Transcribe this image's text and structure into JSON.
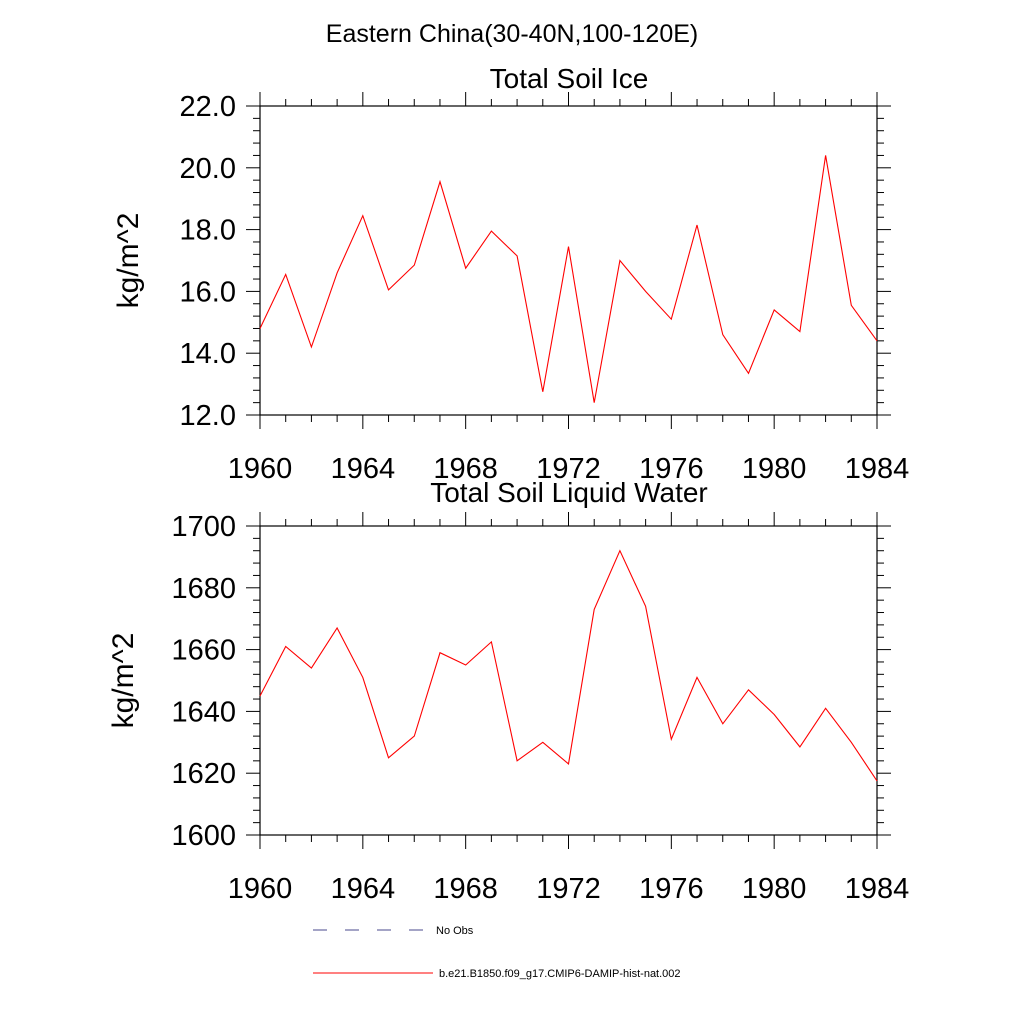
{
  "figure_title": "Eastern China(30-40N,100-120E)",
  "legend": [
    {
      "label": "No Obs",
      "color": "#4a4a8c",
      "style": "dashed"
    },
    {
      "label": "b.e21.B1850.f09_g17.CMIP6-DAMIP-hist-nat.002",
      "color": "#ff0000",
      "style": "solid"
    }
  ],
  "chart_data": [
    {
      "type": "line",
      "title": "Total Soil Ice",
      "xlabel": "",
      "ylabel": "kg/m^2",
      "xlim": [
        1960,
        1984
      ],
      "ylim": [
        12.0,
        22.0
      ],
      "xticks": [
        "1960",
        "1964",
        "1968",
        "1972",
        "1976",
        "1980",
        "1984"
      ],
      "yticks": [
        "12.0",
        "14.0",
        "16.0",
        "18.0",
        "20.0",
        "22.0"
      ],
      "grid": false,
      "x": [
        1960,
        1961,
        1962,
        1963,
        1964,
        1965,
        1966,
        1967,
        1968,
        1969,
        1970,
        1971,
        1972,
        1973,
        1974,
        1975,
        1976,
        1977,
        1978,
        1979,
        1980,
        1981,
        1982,
        1983,
        1984
      ],
      "series": [
        {
          "name": "b.e21.B1850.f09_g17.CMIP6-DAMIP-hist-nat.002",
          "color": "#ff0000",
          "values": [
            14.8,
            16.55,
            14.2,
            16.6,
            18.45,
            16.05,
            16.85,
            19.55,
            16.75,
            17.95,
            17.15,
            12.75,
            17.45,
            12.4,
            17.0,
            16.0,
            15.1,
            18.15,
            14.6,
            13.35,
            15.4,
            14.7,
            20.4,
            15.55,
            14.4
          ]
        }
      ]
    },
    {
      "type": "line",
      "title": "Total Soil Liquid Water",
      "xlabel": "",
      "ylabel": "kg/m^2",
      "xlim": [
        1960,
        1984
      ],
      "ylim": [
        1600,
        1700
      ],
      "xticks": [
        "1960",
        "1964",
        "1968",
        "1972",
        "1976",
        "1980",
        "1984"
      ],
      "yticks": [
        "1600",
        "1620",
        "1640",
        "1660",
        "1680",
        "1700"
      ],
      "grid": false,
      "x": [
        1960,
        1961,
        1962,
        1963,
        1964,
        1965,
        1966,
        1967,
        1968,
        1969,
        1970,
        1971,
        1972,
        1973,
        1974,
        1975,
        1976,
        1977,
        1978,
        1979,
        1980,
        1981,
        1982,
        1983,
        1984
      ],
      "series": [
        {
          "name": "b.e21.B1850.f09_g17.CMIP6-DAMIP-hist-nat.002",
          "color": "#ff0000",
          "values": [
            1645,
            1661,
            1654,
            1667,
            1651,
            1625,
            1632,
            1659,
            1655,
            1662.5,
            1624,
            1630,
            1623,
            1673,
            1692,
            1674,
            1631,
            1651,
            1636,
            1647,
            1639,
            1628.5,
            1641,
            1630,
            1617.5
          ]
        }
      ]
    }
  ]
}
